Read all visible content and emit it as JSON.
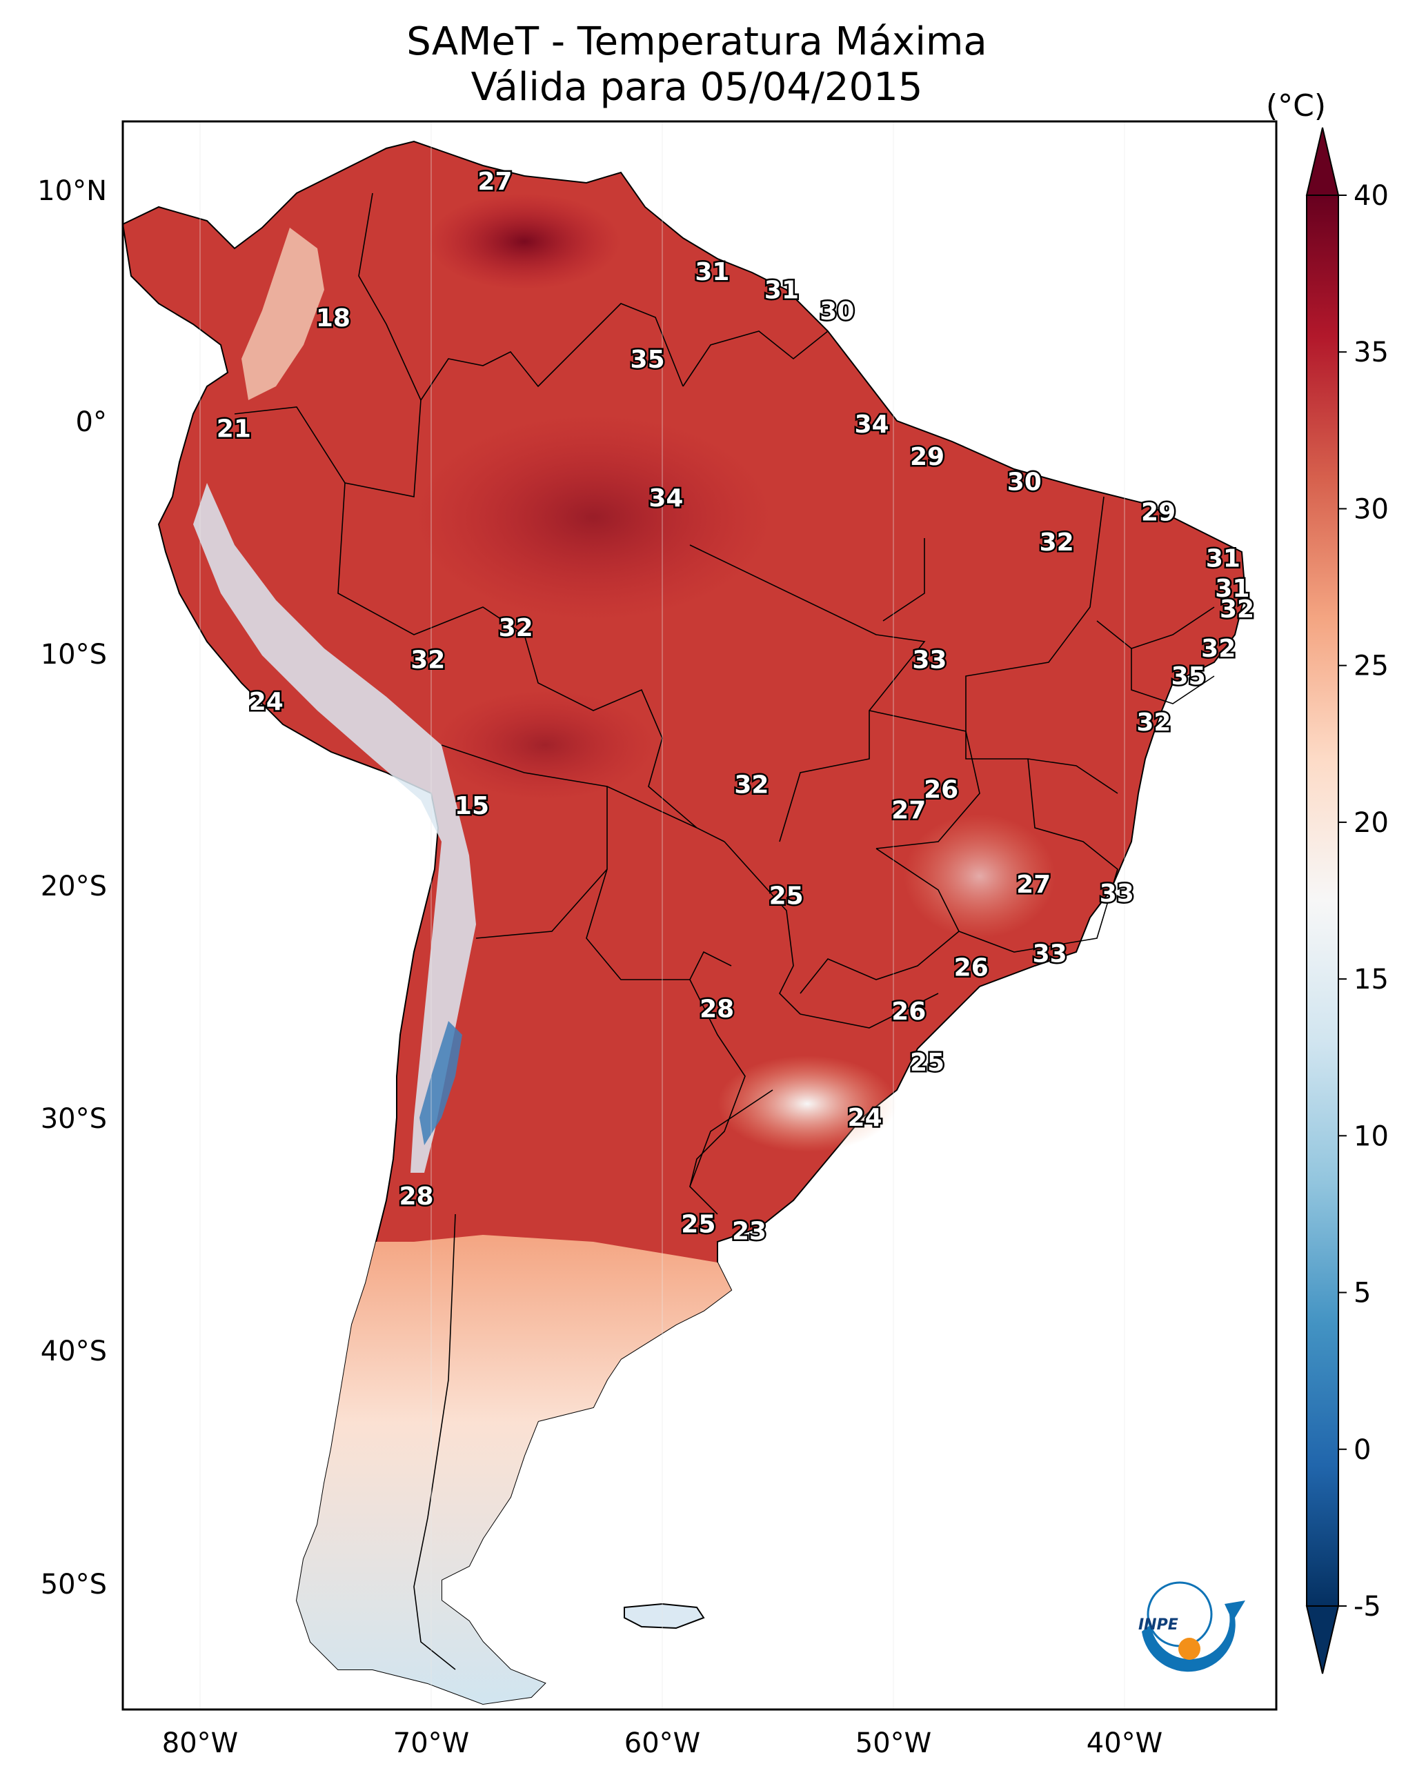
{
  "title": {
    "line1": "SAMeT - Temperatura Máxima",
    "line2": "Válida para 05/04/2015"
  },
  "colorbar": {
    "unit": "(°C)",
    "ticks": [
      "40",
      "35",
      "30",
      "25",
      "20",
      "15",
      "10",
      "5",
      "0",
      "-5"
    ],
    "min": -5,
    "max": 40,
    "colors": [
      "#053061",
      "#2166ac",
      "#4393c3",
      "#92c5de",
      "#d1e5f0",
      "#f7f7f7",
      "#fddbc7",
      "#f4a582",
      "#d6604d",
      "#b2182b",
      "#67001f"
    ]
  },
  "axes": {
    "lat_labels": [
      "10°N",
      "0°",
      "10°S",
      "20°S",
      "30°S",
      "40°S",
      "50°S"
    ],
    "lon_labels": [
      "80°W",
      "70°W",
      "60°W",
      "50°W",
      "40°W"
    ]
  },
  "logo": {
    "text": "INPE"
  },
  "stations": [
    {
      "value": "27",
      "lon": -67.2,
      "lat": 10.5
    },
    {
      "value": "18",
      "lon": -74.2,
      "lat": 4.6
    },
    {
      "value": "21",
      "lon": -78.5,
      "lat": -0.2
    },
    {
      "value": "31",
      "lon": -57.8,
      "lat": 6.6
    },
    {
      "value": "31",
      "lon": -54.8,
      "lat": 5.8
    },
    {
      "value": "30",
      "lon": -52.4,
      "lat": 4.9
    },
    {
      "value": "35",
      "lon": -60.6,
      "lat": 2.8
    },
    {
      "value": "34",
      "lon": -50.9,
      "lat": 0.0
    },
    {
      "value": "29",
      "lon": -48.5,
      "lat": -1.4
    },
    {
      "value": "34",
      "lon": -59.8,
      "lat": -3.2
    },
    {
      "value": "30",
      "lon": -44.3,
      "lat": -2.5
    },
    {
      "value": "29",
      "lon": -38.5,
      "lat": -3.8
    },
    {
      "value": "32",
      "lon": -42.9,
      "lat": -5.1
    },
    {
      "value": "31",
      "lon": -35.7,
      "lat": -5.8
    },
    {
      "value": "31",
      "lon": -35.3,
      "lat": -7.1
    },
    {
      "value": "32",
      "lon": -35.1,
      "lat": -8.0
    },
    {
      "value": "32",
      "lon": -66.3,
      "lat": -8.8
    },
    {
      "value": "32",
      "lon": -70.1,
      "lat": -10.2
    },
    {
      "value": "33",
      "lon": -48.4,
      "lat": -10.2
    },
    {
      "value": "32",
      "lon": -35.9,
      "lat": -9.7
    },
    {
      "value": "35",
      "lon": -37.2,
      "lat": -10.9
    },
    {
      "value": "24",
      "lon": -77.1,
      "lat": -12.0
    },
    {
      "value": "32",
      "lon": -38.7,
      "lat": -12.9
    },
    {
      "value": "26",
      "lon": -47.9,
      "lat": -15.8
    },
    {
      "value": "32",
      "lon": -56.1,
      "lat": -15.6
    },
    {
      "value": "27",
      "lon": -49.3,
      "lat": -16.7
    },
    {
      "value": "15",
      "lon": -68.2,
      "lat": -16.5
    },
    {
      "value": "27",
      "lon": -43.9,
      "lat": -19.9
    },
    {
      "value": "25",
      "lon": -54.6,
      "lat": -20.4
    },
    {
      "value": "33",
      "lon": -40.3,
      "lat": -20.3
    },
    {
      "value": "33",
      "lon": -43.2,
      "lat": -22.9
    },
    {
      "value": "26",
      "lon": -46.6,
      "lat": -23.5
    },
    {
      "value": "28",
      "lon": -57.6,
      "lat": -25.3
    },
    {
      "value": "26",
      "lon": -49.3,
      "lat": -25.4
    },
    {
      "value": "25",
      "lon": -48.5,
      "lat": -27.6
    },
    {
      "value": "24",
      "lon": -51.2,
      "lat": -30.0
    },
    {
      "value": "28",
      "lon": -70.6,
      "lat": -33.4
    },
    {
      "value": "25",
      "lon": -58.4,
      "lat": -34.6
    },
    {
      "value": "23",
      "lon": -56.2,
      "lat": -34.9
    }
  ]
}
